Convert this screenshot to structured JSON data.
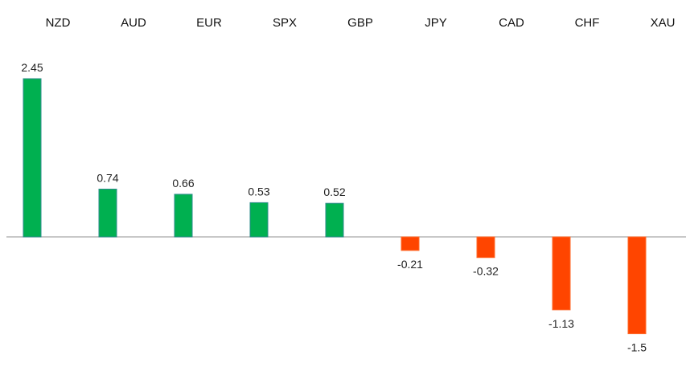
{
  "chart_data": {
    "type": "bar",
    "title": "",
    "xlabel": "",
    "ylabel": "",
    "categories": [
      "NZD",
      "AUD",
      "EUR",
      "SPX",
      "GBP",
      "JPY",
      "CAD",
      "CHF",
      "XAU"
    ],
    "values": [
      2.45,
      0.74,
      0.66,
      0.53,
      0.52,
      -0.21,
      -0.32,
      -1.13,
      -1.5
    ],
    "value_labels": [
      "2.45",
      "0.74",
      "0.66",
      "0.53",
      "0.52",
      "-0.21",
      "-0.32",
      "-1.13",
      "-1.5"
    ],
    "ylim": [
      -1.5,
      2.45
    ],
    "grid": false,
    "legend": "none",
    "category_label_position": "top",
    "colors": {
      "positive_fill": "#00b050",
      "positive_stroke": "#2e8b8b",
      "negative_fill": "#ff4500",
      "negative_stroke": "#ff6a2a",
      "zero_line": "#a6a6a6"
    }
  }
}
